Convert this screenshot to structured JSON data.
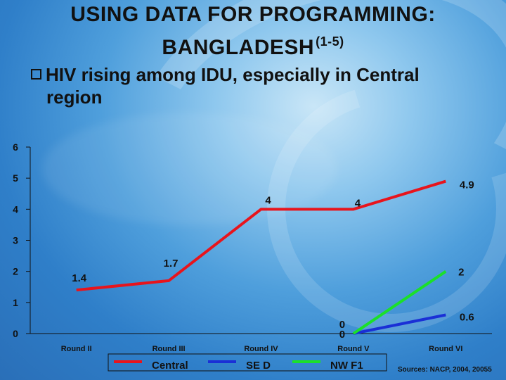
{
  "header": {
    "title_line1": "USING DATA FOR PROGRAMMING:",
    "title_line2": "BANGLADESH",
    "title_sup": "(1-5)"
  },
  "bullet": {
    "line1": "HIV rising among IDU, especially in Central",
    "line2": "region"
  },
  "chart_data": {
    "type": "line",
    "categories": [
      "Round II",
      "Round III",
      "Round IV",
      "Round V",
      "Round VI"
    ],
    "ylim": [
      0,
      6
    ],
    "yticks": [
      0,
      1,
      2,
      3,
      4,
      5,
      6
    ],
    "grid": false,
    "legend_position": "bottom",
    "series": [
      {
        "name": "Central",
        "color": "#e8141c",
        "values": [
          1.4,
          1.7,
          4,
          4,
          4.9
        ],
        "labels": [
          "1.4",
          "1.7",
          "4",
          "4",
          "4.9"
        ]
      },
      {
        "name": "SE D",
        "color": "#1a2fd6",
        "values": [
          null,
          null,
          null,
          0,
          0.6
        ],
        "labels": [
          null,
          null,
          null,
          "0",
          "0.6"
        ]
      },
      {
        "name": "NW F1",
        "color": "#1be02a",
        "values": [
          null,
          null,
          null,
          0,
          2
        ],
        "labels": [
          null,
          null,
          null,
          "0",
          "2"
        ]
      }
    ]
  },
  "footer": {
    "source": "Sources: NACP, 2004, 20055"
  }
}
